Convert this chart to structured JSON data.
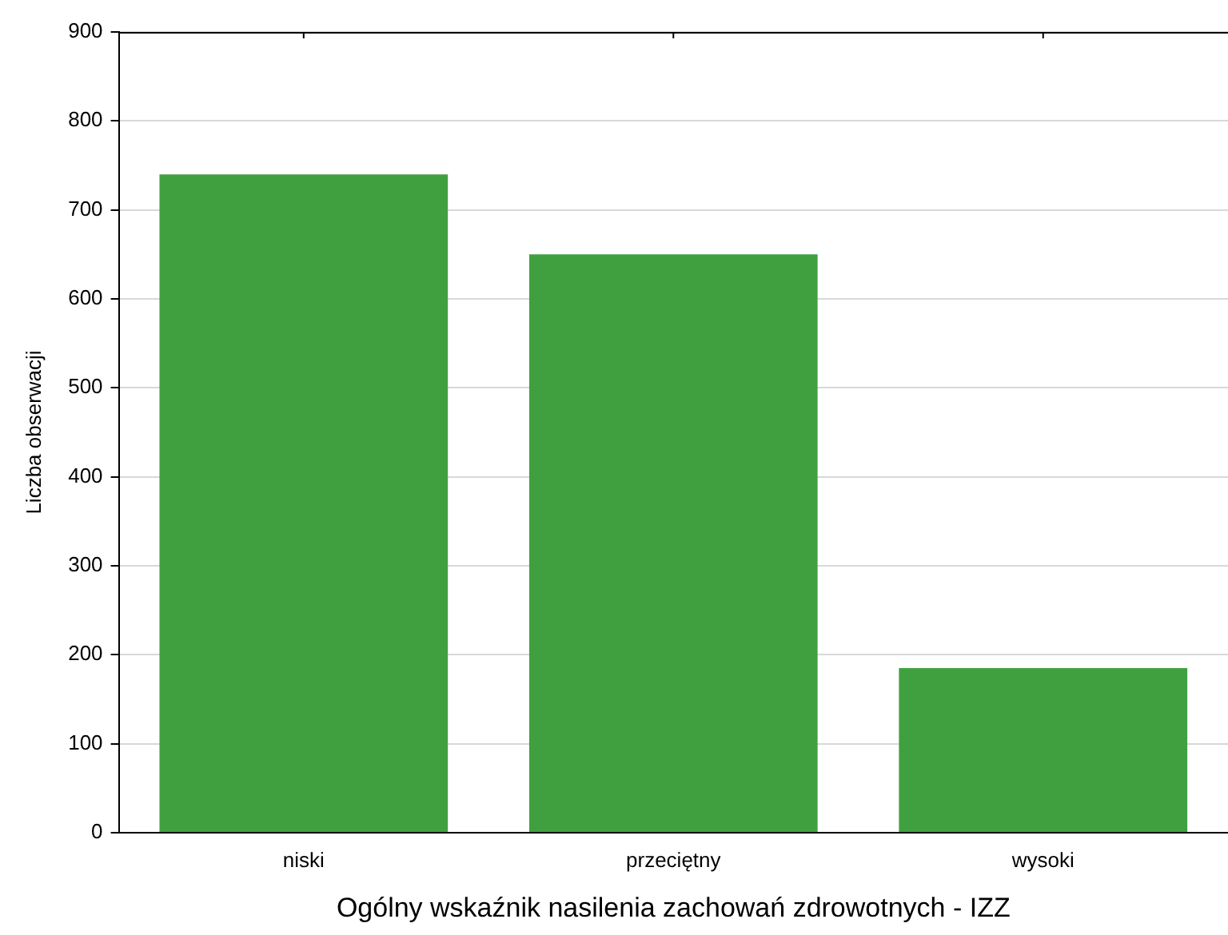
{
  "chart_data": {
    "type": "bar",
    "xlabel": "Ogólny wskaźnik nasilenia zachowań zdrowotnych - IZZ",
    "ylabel": "Liczba obserwacji",
    "categories": [
      "niski",
      "przeciętny",
      "wysoki"
    ],
    "values": [
      740,
      650,
      185
    ],
    "color": "#40a040",
    "ylim": [
      0,
      900
    ],
    "yticks": [
      0,
      100,
      200,
      300,
      400,
      500,
      600,
      700,
      800,
      900
    ],
    "grid": "y",
    "legend": false
  }
}
